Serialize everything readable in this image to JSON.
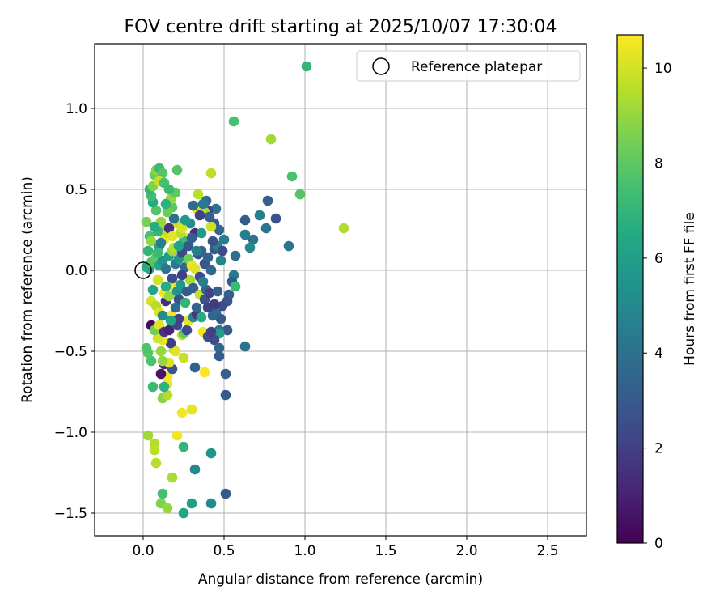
{
  "chart_data": {
    "type": "scatter",
    "title": "FOV centre drift starting at 2025/10/07 17:30:04",
    "xlabel": "Angular distance from reference (arcmin)",
    "ylabel": "Rotation from reference (arcmin)",
    "xlim": [
      -0.3,
      2.74
    ],
    "ylim": [
      -1.64,
      1.4
    ],
    "xticks": [
      0.0,
      0.5,
      1.0,
      1.5,
      2.0,
      2.5
    ],
    "xtick_labels": [
      "0.0",
      "0.5",
      "1.0",
      "1.5",
      "2.0",
      "2.5"
    ],
    "yticks": [
      -1.5,
      -1.0,
      -0.5,
      0.0,
      0.5,
      1.0
    ],
    "ytick_labels": [
      "−1.5",
      "−1.0",
      "−0.5",
      "0.0",
      "0.5",
      "1.0"
    ],
    "grid": true,
    "legend": {
      "placement": "top-right",
      "entries": [
        {
          "label": "Reference platepar",
          "marker": "open-circle",
          "x": 0.0,
          "y": 0.0
        }
      ]
    },
    "colorbar": {
      "label": "Hours from first FF file",
      "colormap": "viridis",
      "range": [
        0,
        10.7
      ],
      "ticks": [
        0,
        2,
        4,
        6,
        8,
        10
      ],
      "tick_labels": [
        "0",
        "2",
        "4",
        "6",
        "8",
        "10"
      ]
    },
    "points": [
      {
        "x": 1.01,
        "y": 1.26,
        "c": 7.0
      },
      {
        "x": 0.56,
        "y": 0.92,
        "c": 7.5
      },
      {
        "x": 0.79,
        "y": 0.81,
        "c": 9.2
      },
      {
        "x": 0.92,
        "y": 0.58,
        "c": 7.6
      },
      {
        "x": 0.97,
        "y": 0.47,
        "c": 7.8
      },
      {
        "x": 1.24,
        "y": 0.26,
        "c": 9.4
      },
      {
        "x": 0.42,
        "y": 0.6,
        "c": 9.6
      },
      {
        "x": 0.77,
        "y": 0.43,
        "c": 3.2
      },
      {
        "x": 0.82,
        "y": 0.32,
        "c": 2.8
      },
      {
        "x": 0.72,
        "y": 0.34,
        "c": 4.6
      },
      {
        "x": 0.63,
        "y": 0.31,
        "c": 3.0
      },
      {
        "x": 0.76,
        "y": 0.26,
        "c": 4.2
      },
      {
        "x": 0.68,
        "y": 0.19,
        "c": 4.0
      },
      {
        "x": 0.63,
        "y": 0.22,
        "c": 4.5
      },
      {
        "x": 0.66,
        "y": 0.14,
        "c": 5.0
      },
      {
        "x": 0.9,
        "y": 0.15,
        "c": 4.2
      },
      {
        "x": 0.57,
        "y": 0.09,
        "c": 3.8
      },
      {
        "x": 0.48,
        "y": 0.06,
        "c": 4.8
      },
      {
        "x": 0.56,
        "y": -0.03,
        "c": 4.3
      },
      {
        "x": 0.55,
        "y": -0.07,
        "c": 3.0
      },
      {
        "x": 0.57,
        "y": -0.1,
        "c": 7.2
      },
      {
        "x": 0.53,
        "y": -0.15,
        "c": 3.2
      },
      {
        "x": 0.52,
        "y": -0.19,
        "c": 2.8
      },
      {
        "x": 0.49,
        "y": -0.22,
        "c": 2.5
      },
      {
        "x": 0.45,
        "y": -0.26,
        "c": 3.6
      },
      {
        "x": 0.48,
        "y": -0.3,
        "c": 3.0
      },
      {
        "x": 0.52,
        "y": -0.37,
        "c": 3.0
      },
      {
        "x": 0.47,
        "y": -0.37,
        "c": 4.1
      },
      {
        "x": 0.47,
        "y": -0.39,
        "c": 6.0
      },
      {
        "x": 0.44,
        "y": -0.43,
        "c": 2.5
      },
      {
        "x": 0.47,
        "y": -0.48,
        "c": 3.5
      },
      {
        "x": 0.63,
        "y": -0.47,
        "c": 4.0
      },
      {
        "x": 0.47,
        "y": -0.53,
        "c": 3.1
      },
      {
        "x": 0.51,
        "y": -0.64,
        "c": 3.2
      },
      {
        "x": 0.51,
        "y": -0.77,
        "c": 3.0
      },
      {
        "x": 0.32,
        "y": -0.6,
        "c": 3.3
      },
      {
        "x": 0.38,
        "y": -0.63,
        "c": 10.6
      },
      {
        "x": 0.3,
        "y": -0.86,
        "c": 10.3
      },
      {
        "x": 0.24,
        "y": -0.88,
        "c": 10.5
      },
      {
        "x": 0.21,
        "y": -1.02,
        "c": 10.5
      },
      {
        "x": 0.25,
        "y": -1.09,
        "c": 7.0
      },
      {
        "x": 0.42,
        "y": -1.13,
        "c": 5.5
      },
      {
        "x": 0.32,
        "y": -1.23,
        "c": 5.0
      },
      {
        "x": 0.51,
        "y": -1.38,
        "c": 3.0
      },
      {
        "x": 0.42,
        "y": -1.44,
        "c": 5.2
      },
      {
        "x": 0.3,
        "y": -1.44,
        "c": 6.0
      },
      {
        "x": 0.25,
        "y": -1.5,
        "c": 6.3
      },
      {
        "x": 0.12,
        "y": -1.38,
        "c": 7.5
      },
      {
        "x": 0.18,
        "y": -1.28,
        "c": 9.3
      },
      {
        "x": 0.11,
        "y": -1.44,
        "c": 8.6
      },
      {
        "x": 0.15,
        "y": -1.47,
        "c": 9.0
      },
      {
        "x": 0.08,
        "y": -1.19,
        "c": 9.5
      },
      {
        "x": 0.07,
        "y": -1.07,
        "c": 9.5
      },
      {
        "x": 0.07,
        "y": -1.11,
        "c": 9.6
      },
      {
        "x": 0.03,
        "y": -1.02,
        "c": 9.2
      },
      {
        "x": 0.06,
        "y": -0.72,
        "c": 7.2
      },
      {
        "x": 0.12,
        "y": -0.79,
        "c": 8.8
      },
      {
        "x": 0.15,
        "y": -0.77,
        "c": 9.5
      },
      {
        "x": 0.15,
        "y": -0.7,
        "c": 10.4
      },
      {
        "x": 0.15,
        "y": -0.66,
        "c": 10.6
      },
      {
        "x": 0.13,
        "y": -0.72,
        "c": 6.8
      },
      {
        "x": 0.11,
        "y": -0.64,
        "c": 0.6
      },
      {
        "x": 0.13,
        "y": -0.58,
        "c": 1.2
      },
      {
        "x": 0.18,
        "y": -0.61,
        "c": 2.8
      },
      {
        "x": 0.16,
        "y": -0.57,
        "c": 10.2
      },
      {
        "x": 0.12,
        "y": -0.56,
        "c": 9.0
      },
      {
        "x": 0.05,
        "y": -0.56,
        "c": 7.6
      },
      {
        "x": 0.03,
        "y": -0.51,
        "c": 7.9
      },
      {
        "x": 0.02,
        "y": -0.48,
        "c": 7.7
      },
      {
        "x": 0.11,
        "y": -0.5,
        "c": 9.0
      },
      {
        "x": 0.19,
        "y": -0.49,
        "c": 9.6
      },
      {
        "x": 0.2,
        "y": -0.5,
        "c": 10.2
      },
      {
        "x": 0.25,
        "y": -0.54,
        "c": 9.8
      },
      {
        "x": 0.17,
        "y": -0.45,
        "c": 2.0
      },
      {
        "x": 0.12,
        "y": -0.43,
        "c": 10.4
      },
      {
        "x": 0.09,
        "y": -0.42,
        "c": 10.0
      },
      {
        "x": 0.05,
        "y": -0.34,
        "c": 0.3
      },
      {
        "x": 0.07,
        "y": -0.37,
        "c": 8.4
      },
      {
        "x": 0.1,
        "y": -0.34,
        "c": 10.2
      },
      {
        "x": 0.13,
        "y": -0.38,
        "c": 1.5
      },
      {
        "x": 0.16,
        "y": -0.37,
        "c": 1.0
      },
      {
        "x": 0.17,
        "y": -0.28,
        "c": 10.6
      },
      {
        "x": 0.21,
        "y": -0.34,
        "c": 2.3
      },
      {
        "x": 0.22,
        "y": -0.3,
        "c": 2.0
      },
      {
        "x": 0.24,
        "y": -0.4,
        "c": 9.8
      },
      {
        "x": 0.25,
        "y": -0.39,
        "c": 8.0
      },
      {
        "x": 0.27,
        "y": -0.37,
        "c": 2.5
      },
      {
        "x": 0.28,
        "y": -0.31,
        "c": 10.3
      },
      {
        "x": 0.31,
        "y": -0.29,
        "c": 5.0
      },
      {
        "x": 0.33,
        "y": -0.27,
        "c": 1.7
      },
      {
        "x": 0.36,
        "y": -0.29,
        "c": 6.5
      },
      {
        "x": 0.37,
        "y": -0.38,
        "c": 10.5
      },
      {
        "x": 0.4,
        "y": -0.41,
        "c": 2.5
      },
      {
        "x": 0.42,
        "y": -0.38,
        "c": 2.0
      },
      {
        "x": 0.43,
        "y": -0.28,
        "c": 3.6
      },
      {
        "x": 0.05,
        "y": -0.19,
        "c": 10.0
      },
      {
        "x": 0.08,
        "y": -0.22,
        "c": 9.5
      },
      {
        "x": 0.1,
        "y": -0.26,
        "c": 10.2
      },
      {
        "x": 0.14,
        "y": -0.19,
        "c": 1.4
      },
      {
        "x": 0.13,
        "y": -0.14,
        "c": 10.5
      },
      {
        "x": 0.16,
        "y": -0.16,
        "c": 9.0
      },
      {
        "x": 0.19,
        "y": -0.1,
        "c": 10.6
      },
      {
        "x": 0.18,
        "y": -0.05,
        "c": 2.5
      },
      {
        "x": 0.21,
        "y": -0.13,
        "c": 5.5
      },
      {
        "x": 0.22,
        "y": -0.18,
        "c": 2.6
      },
      {
        "x": 0.23,
        "y": -0.09,
        "c": 5.8
      },
      {
        "x": 0.26,
        "y": -0.2,
        "c": 7.0
      },
      {
        "x": 0.27,
        "y": -0.13,
        "c": 3.1
      },
      {
        "x": 0.29,
        "y": -0.06,
        "c": 9.3
      },
      {
        "x": 0.31,
        "y": -0.11,
        "c": 3.2
      },
      {
        "x": 0.33,
        "y": -0.23,
        "c": 3.4
      },
      {
        "x": 0.35,
        "y": -0.15,
        "c": 9.8
      },
      {
        "x": 0.38,
        "y": -0.18,
        "c": 2.6
      },
      {
        "x": 0.4,
        "y": -0.23,
        "c": 2.0
      },
      {
        "x": 0.39,
        "y": -0.12,
        "c": 3.5
      },
      {
        "x": 0.41,
        "y": -0.14,
        "c": 2.1
      },
      {
        "x": 0.44,
        "y": -0.21,
        "c": 1.8
      },
      {
        "x": 0.46,
        "y": -0.13,
        "c": 3.2
      },
      {
        "x": 0.06,
        "y": -0.12,
        "c": 6.3
      },
      {
        "x": 0.09,
        "y": -0.06,
        "c": 10.0
      },
      {
        "x": 0.04,
        "y": 0.01,
        "c": 6.1
      },
      {
        "x": 0.02,
        "y": 0.02,
        "c": 6.5
      },
      {
        "x": 0.05,
        "y": 0.05,
        "c": 7.8
      },
      {
        "x": 0.08,
        "y": 0.08,
        "c": 8.0
      },
      {
        "x": 0.1,
        "y": 0.03,
        "c": 6.4
      },
      {
        "x": 0.12,
        "y": 0.06,
        "c": 5.5
      },
      {
        "x": 0.14,
        "y": 0.01,
        "c": 4.2
      },
      {
        "x": 0.16,
        "y": 0.09,
        "c": 6.0
      },
      {
        "x": 0.18,
        "y": 0.12,
        "c": 9.1
      },
      {
        "x": 0.2,
        "y": 0.04,
        "c": 4.3
      },
      {
        "x": 0.22,
        "y": 0.07,
        "c": 5.5
      },
      {
        "x": 0.24,
        "y": 0.11,
        "c": 2.2
      },
      {
        "x": 0.26,
        "y": 0.02,
        "c": 3.6
      },
      {
        "x": 0.28,
        "y": 0.07,
        "c": 8.3
      },
      {
        "x": 0.3,
        "y": 0.03,
        "c": 10.4
      },
      {
        "x": 0.32,
        "y": 0.01,
        "c": 10.2
      },
      {
        "x": 0.34,
        "y": 0.1,
        "c": 2.5
      },
      {
        "x": 0.36,
        "y": 0.12,
        "c": 3.5
      },
      {
        "x": 0.38,
        "y": 0.04,
        "c": 2.8
      },
      {
        "x": 0.4,
        "y": 0.08,
        "c": 3.3
      },
      {
        "x": 0.42,
        "y": 0.0,
        "c": 3.6
      },
      {
        "x": 0.44,
        "y": 0.13,
        "c": 3.0
      },
      {
        "x": 0.46,
        "y": 0.15,
        "c": 4.6
      },
      {
        "x": 0.49,
        "y": 0.12,
        "c": 2.5
      },
      {
        "x": 0.5,
        "y": 0.19,
        "c": 4.5
      },
      {
        "x": 0.47,
        "y": 0.25,
        "c": 3.5
      },
      {
        "x": 0.44,
        "y": 0.29,
        "c": 3.0
      },
      {
        "x": 0.45,
        "y": 0.38,
        "c": 4.0
      },
      {
        "x": 0.4,
        "y": 0.37,
        "c": 2.2
      },
      {
        "x": 0.39,
        "y": 0.43,
        "c": 3.8
      },
      {
        "x": 0.38,
        "y": 0.36,
        "c": 9.2
      },
      {
        "x": 0.35,
        "y": 0.37,
        "c": 10.0
      },
      {
        "x": 0.34,
        "y": 0.47,
        "c": 9.6
      },
      {
        "x": 0.33,
        "y": 0.38,
        "c": 10.2
      },
      {
        "x": 0.32,
        "y": 0.23,
        "c": 1.5
      },
      {
        "x": 0.29,
        "y": 0.29,
        "c": 5.2
      },
      {
        "x": 0.27,
        "y": 0.2,
        "c": 10.3
      },
      {
        "x": 0.25,
        "y": 0.18,
        "c": 7.2
      },
      {
        "x": 0.23,
        "y": 0.23,
        "c": 9.5
      },
      {
        "x": 0.21,
        "y": 0.29,
        "c": 9.8
      },
      {
        "x": 0.19,
        "y": 0.32,
        "c": 4.0
      },
      {
        "x": 0.18,
        "y": 0.39,
        "c": 7.9
      },
      {
        "x": 0.17,
        "y": 0.44,
        "c": 9.0
      },
      {
        "x": 0.2,
        "y": 0.48,
        "c": 8.0
      },
      {
        "x": 0.15,
        "y": 0.36,
        "c": 8.3
      },
      {
        "x": 0.14,
        "y": 0.41,
        "c": 6.8
      },
      {
        "x": 0.12,
        "y": 0.25,
        "c": 9.6
      },
      {
        "x": 0.13,
        "y": 0.19,
        "c": 10.5
      },
      {
        "x": 0.11,
        "y": 0.3,
        "c": 9.0
      },
      {
        "x": 0.1,
        "y": 0.15,
        "c": 6.0
      },
      {
        "x": 0.09,
        "y": 0.24,
        "c": 7.0
      },
      {
        "x": 0.08,
        "y": 0.37,
        "c": 7.8
      },
      {
        "x": 0.06,
        "y": 0.42,
        "c": 6.5
      },
      {
        "x": 0.05,
        "y": 0.46,
        "c": 7.4
      },
      {
        "x": 0.04,
        "y": 0.5,
        "c": 7.0
      },
      {
        "x": 0.06,
        "y": 0.52,
        "c": 8.6
      },
      {
        "x": 0.07,
        "y": 0.59,
        "c": 8.3
      },
      {
        "x": 0.08,
        "y": 0.62,
        "c": 8.9
      },
      {
        "x": 0.1,
        "y": 0.63,
        "c": 7.2
      },
      {
        "x": 0.12,
        "y": 0.6,
        "c": 7.8
      },
      {
        "x": 0.1,
        "y": 0.55,
        "c": 9.8
      },
      {
        "x": 0.13,
        "y": 0.54,
        "c": 7.5
      },
      {
        "x": 0.16,
        "y": 0.5,
        "c": 7.2
      },
      {
        "x": 0.21,
        "y": 0.62,
        "c": 7.8
      },
      {
        "x": 0.02,
        "y": 0.3,
        "c": 8.5
      },
      {
        "x": 0.04,
        "y": 0.21,
        "c": 7.5
      },
      {
        "x": 0.03,
        "y": 0.12,
        "c": 7.0
      },
      {
        "x": 0.05,
        "y": 0.18,
        "c": 9.0
      },
      {
        "x": 0.07,
        "y": 0.27,
        "c": 6.6
      },
      {
        "x": 0.09,
        "y": 0.11,
        "c": 7.2
      },
      {
        "x": 0.11,
        "y": 0.17,
        "c": 4.5
      },
      {
        "x": 0.15,
        "y": 0.23,
        "c": 9.8
      },
      {
        "x": 0.16,
        "y": 0.26,
        "c": 1.5
      },
      {
        "x": 0.18,
        "y": 0.21,
        "c": 10.3
      },
      {
        "x": 0.19,
        "y": 0.14,
        "c": 9.5
      },
      {
        "x": 0.22,
        "y": 0.15,
        "c": 6.3
      },
      {
        "x": 0.24,
        "y": 0.26,
        "c": 10.1
      },
      {
        "x": 0.26,
        "y": 0.31,
        "c": 5.8
      },
      {
        "x": 0.28,
        "y": 0.15,
        "c": 2.9
      },
      {
        "x": 0.3,
        "y": 0.2,
        "c": 3.2
      },
      {
        "x": 0.31,
        "y": 0.4,
        "c": 3.8
      },
      {
        "x": 0.35,
        "y": 0.34,
        "c": 2.1
      },
      {
        "x": 0.37,
        "y": 0.41,
        "c": 4.4
      },
      {
        "x": 0.42,
        "y": 0.27,
        "c": 9.9
      },
      {
        "x": 0.41,
        "y": 0.33,
        "c": 3.3
      },
      {
        "x": 0.43,
        "y": 0.18,
        "c": 2.6
      },
      {
        "x": 0.36,
        "y": 0.23,
        "c": 5.8
      },
      {
        "x": 0.33,
        "y": 0.12,
        "c": 4.6
      },
      {
        "x": 0.35,
        "y": -0.04,
        "c": 2.3
      },
      {
        "x": 0.37,
        "y": -0.07,
        "c": 4.6
      },
      {
        "x": 0.24,
        "y": -0.03,
        "c": 2.0
      },
      {
        "x": 0.2,
        "y": -0.23,
        "c": 3.8
      },
      {
        "x": 0.14,
        "y": -0.1,
        "c": 6.6
      },
      {
        "x": 0.12,
        "y": -0.28,
        "c": 5.2
      },
      {
        "x": 0.17,
        "y": -0.31,
        "c": 6.2
      }
    ]
  }
}
